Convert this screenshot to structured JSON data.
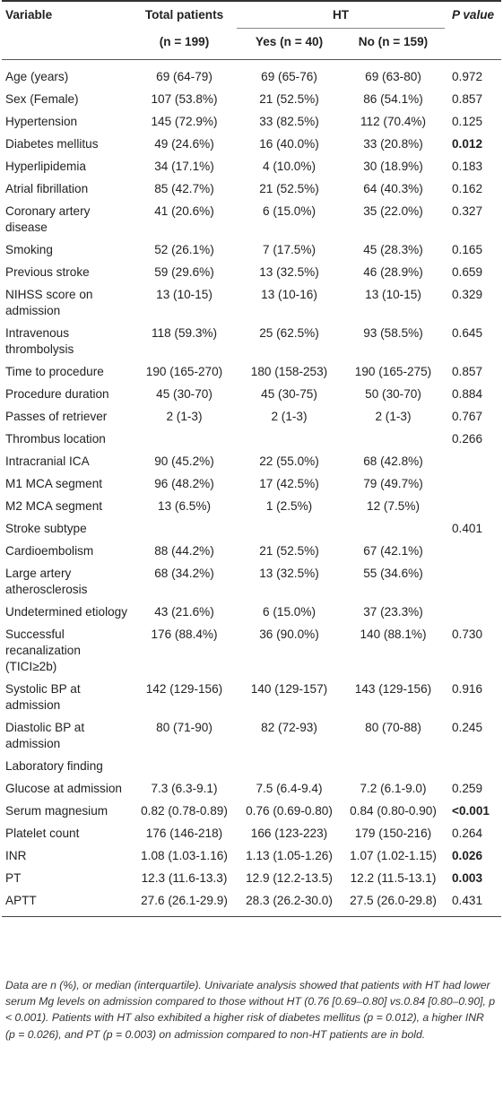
{
  "header": {
    "variable": "Variable",
    "total": "Total patients",
    "ht": "HT",
    "pvalue": "P value",
    "total_n": "(n = 199)",
    "yes_n": "Yes (n = 40)",
    "no_n": "No (n = 159)"
  },
  "rows": [
    {
      "variable": "Age (years)",
      "total": "69 (64-79)",
      "yes": "69 (65-76)",
      "no": "69 (63-80)",
      "p": "0.972",
      "p_bold": false
    },
    {
      "variable": "Sex (Female)",
      "total": "107 (53.8%)",
      "yes": "21 (52.5%)",
      "no": "86 (54.1%)",
      "p": "0.857",
      "p_bold": false
    },
    {
      "variable": "Hypertension",
      "total": "145 (72.9%)",
      "yes": "33 (82.5%)",
      "no": "112 (70.4%)",
      "p": "0.125",
      "p_bold": false
    },
    {
      "variable": "Diabetes mellitus",
      "total": "49 (24.6%)",
      "yes": "16 (40.0%)",
      "no": "33 (20.8%)",
      "p": "0.012",
      "p_bold": true
    },
    {
      "variable": "Hyperlipidemia",
      "total": "34 (17.1%)",
      "yes": "4 (10.0%)",
      "no": "30 (18.9%)",
      "p": "0.183",
      "p_bold": false
    },
    {
      "variable": "Atrial fibrillation",
      "total": "85 (42.7%)",
      "yes": "21 (52.5%)",
      "no": "64 (40.3%)",
      "p": "0.162",
      "p_bold": false
    },
    {
      "variable": "Coronary artery disease",
      "total": "41 (20.6%)",
      "yes": "6 (15.0%)",
      "no": "35 (22.0%)",
      "p": "0.327",
      "p_bold": false
    },
    {
      "variable": "Smoking",
      "total": "52 (26.1%)",
      "yes": "7 (17.5%)",
      "no": "45 (28.3%)",
      "p": "0.165",
      "p_bold": false
    },
    {
      "variable": "Previous stroke",
      "total": "59 (29.6%)",
      "yes": "13 (32.5%)",
      "no": "46 (28.9%)",
      "p": "0.659",
      "p_bold": false
    },
    {
      "variable": "NIHSS score on admission",
      "total": "13 (10-15)",
      "yes": "13 (10-16)",
      "no": "13 (10-15)",
      "p": "0.329",
      "p_bold": false
    },
    {
      "variable": "Intravenous thrombolysis",
      "total": "118 (59.3%)",
      "yes": "25 (62.5%)",
      "no": "93 (58.5%)",
      "p": "0.645",
      "p_bold": false
    },
    {
      "variable": "Time to procedure",
      "total": "190 (165-270)",
      "yes": "180 (158-253)",
      "no": "190 (165-275)",
      "p": "0.857",
      "p_bold": false
    },
    {
      "variable": "Procedure duration",
      "total": "45 (30-70)",
      "yes": "45 (30-75)",
      "no": "50 (30-70)",
      "p": "0.884",
      "p_bold": false
    },
    {
      "variable": "Passes of retriever",
      "total": "2 (1-3)",
      "yes": "2 (1-3)",
      "no": "2 (1-3)",
      "p": "0.767",
      "p_bold": false
    },
    {
      "variable": "Thrombus location",
      "total": "",
      "yes": "",
      "no": "",
      "p": "0.266",
      "p_bold": false
    },
    {
      "variable": "Intracranial ICA",
      "total": "90 (45.2%)",
      "yes": "22 (55.0%)",
      "no": "68 (42.8%)",
      "p": "",
      "p_bold": false
    },
    {
      "variable": "M1 MCA segment",
      "total": "96 (48.2%)",
      "yes": "17 (42.5%)",
      "no": "79 (49.7%)",
      "p": "",
      "p_bold": false
    },
    {
      "variable": "M2 MCA segment",
      "total": "13 (6.5%)",
      "yes": "1 (2.5%)",
      "no": "12 (7.5%)",
      "p": "",
      "p_bold": false
    },
    {
      "variable": "Stroke subtype",
      "total": "",
      "yes": "",
      "no": "",
      "p": "0.401",
      "p_bold": false
    },
    {
      "variable": "Cardioembolism",
      "total": "88 (44.2%)",
      "yes": "21 (52.5%)",
      "no": "67 (42.1%)",
      "p": "",
      "p_bold": false
    },
    {
      "variable": "Large artery atherosclerosis",
      "total": "68 (34.2%)",
      "yes": "13 (32.5%)",
      "no": "55 (34.6%)",
      "p": "",
      "p_bold": false
    },
    {
      "variable": "Undetermined etiology",
      "total": "43 (21.6%)",
      "yes": "6 (15.0%)",
      "no": "37 (23.3%)",
      "p": "",
      "p_bold": false
    },
    {
      "variable": "Successful recanalization (TICI≥2b)",
      "total": "176 (88.4%)",
      "yes": "36 (90.0%)",
      "no": "140 (88.1%)",
      "p": "0.730",
      "p_bold": false
    },
    {
      "variable": "Systolic BP at admission",
      "total": "142 (129-156)",
      "yes": "140 (129-157)",
      "no": "143 (129-156)",
      "p": "0.916",
      "p_bold": false
    },
    {
      "variable": "Diastolic BP at admission",
      "total": "80 (71-90)",
      "yes": "82 (72-93)",
      "no": "80 (70-88)",
      "p": "0.245",
      "p_bold": false
    },
    {
      "variable": "Laboratory finding",
      "total": "",
      "yes": "",
      "no": "",
      "p": "",
      "p_bold": false
    },
    {
      "variable": "Glucose at admission",
      "total": "7.3 (6.3-9.1)",
      "yes": "7.5 (6.4-9.4)",
      "no": "7.2 (6.1-9.0)",
      "p": "0.259",
      "p_bold": false
    },
    {
      "variable": "Serum magnesium",
      "total": "0.82 (0.78-0.89)",
      "yes": "0.76 (0.69-0.80)",
      "no": "0.84 (0.80-0.90)",
      "p": "<0.001",
      "p_bold": true
    },
    {
      "variable": "Platelet count",
      "total": "176 (146-218)",
      "yes": "166 (123-223)",
      "no": "179 (150-216)",
      "p": "0.264",
      "p_bold": false
    },
    {
      "variable": "INR",
      "total": "1.08 (1.03-1.16)",
      "yes": "1.13 (1.05-1.26)",
      "no": "1.07 (1.02-1.15)",
      "p": "0.026",
      "p_bold": true
    },
    {
      "variable": "PT",
      "total": "12.3 (11.6-13.3)",
      "yes": "12.9 (12.2-13.5)",
      "no": "12.2 (11.5-13.1)",
      "p": "0.003",
      "p_bold": true
    },
    {
      "variable": "APTT",
      "total": "27.6 (26.1-29.9)",
      "yes": "28.3 (26.2-30.0)",
      "no": "27.5 (26.0-29.8)",
      "p": "0.431",
      "p_bold": false
    }
  ],
  "footnote": "Data are n (%), or median (interquartile). Univariate analysis showed that patients with HT had lower serum Mg levels on admission compared to those without HT (0.76 [0.69–0.80] vs.0.84 [0.80–0.90], p < 0.001). Patients with HT also exhibited a higher risk of diabetes mellitus (p = 0.012), a higher INR (p = 0.026), and PT (p = 0.003) on admission compared to non-HT patients are in bold."
}
